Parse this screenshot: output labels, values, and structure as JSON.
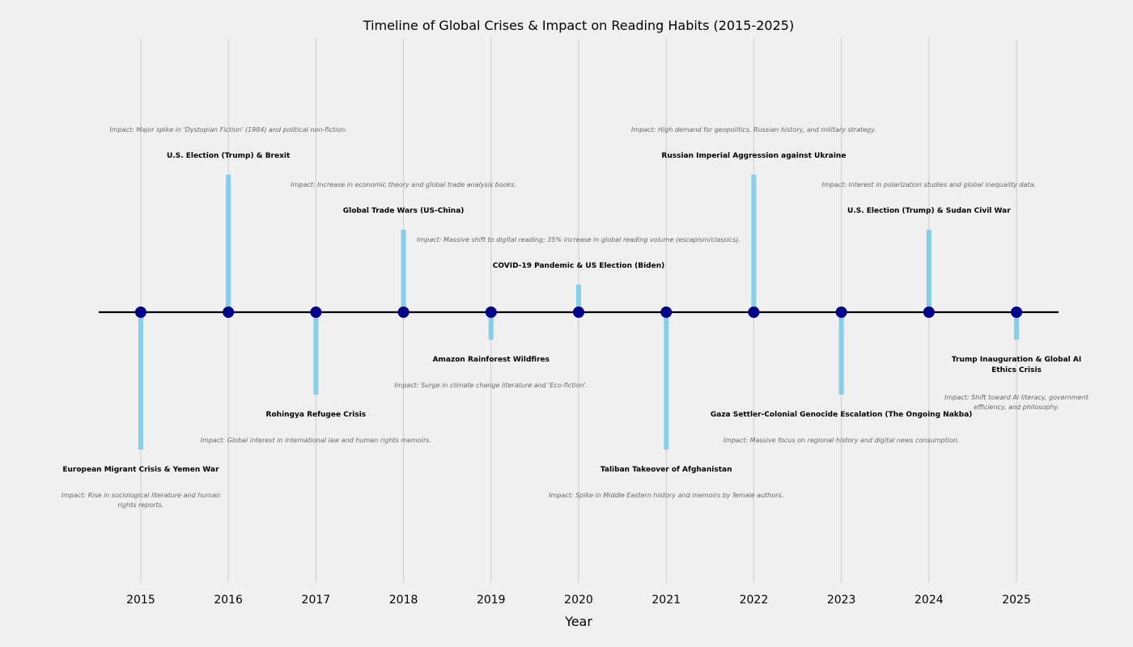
{
  "chart_data": {
    "type": "timeline",
    "title": "Timeline of Global Crises & Impact on Reading Habits (2015-2025)",
    "xlabel": "Year",
    "ylabel": "",
    "xlim": [
      2014.52,
      2025.48
    ],
    "ylim": [
      -10,
      10
    ],
    "grid": "vertical",
    "x_ticks": [
      "2015",
      "2016",
      "2017",
      "2018",
      "2019",
      "2020",
      "2021",
      "2022",
      "2023",
      "2024",
      "2025"
    ],
    "colors": {
      "stem": "#87ceeb",
      "marker": "#00008b",
      "baseline": "#000000",
      "grid": "#cccccc",
      "impact_text": "#666666"
    },
    "events": [
      {
        "year": 2015,
        "level": -5,
        "event": "European Migrant Crisis & Yemen War",
        "impact": "Impact: Rise in sociological literature and human rights reports."
      },
      {
        "year": 2016,
        "level": 5,
        "event": "U.S. Election (Trump) & Brexit",
        "impact": "Impact: Major spike in 'Dystopian Fiction' (1984) and political non-fiction."
      },
      {
        "year": 2017,
        "level": -3,
        "event": "Rohingya Refugee Crisis",
        "impact": "Impact: Global interest in international law and human rights memoirs."
      },
      {
        "year": 2018,
        "level": 3,
        "event": "Global Trade Wars (US-China)",
        "impact": "Impact: Increase in economic theory and global trade analysis books."
      },
      {
        "year": 2019,
        "level": -1,
        "event": "Amazon Rainforest Wildfires",
        "impact": "Impact: Surge in climate change literature and 'Eco-fiction'."
      },
      {
        "year": 2020,
        "level": 1,
        "event": "COVID-19 Pandemic & US Election (Biden)",
        "impact": "Impact: Massive shift to digital reading; 35% increase in global reading volume (escapism/classics)."
      },
      {
        "year": 2021,
        "level": -5,
        "event": "Taliban Takeover of Afghanistan",
        "impact": "Impact: Spike in Middle Eastern history and memoirs by female authors."
      },
      {
        "year": 2022,
        "level": 5,
        "event": "Russian Imperial Aggression against Ukraine",
        "impact": "Impact: High demand for geopolitics, Russian history, and military strategy."
      },
      {
        "year": 2023,
        "level": -3,
        "event": "Gaza Settler-Colonial Genocide Escalation (The Ongoing Nakba)",
        "impact": "Impact: Massive focus on regional history and digital news consumption."
      },
      {
        "year": 2024,
        "level": 3,
        "event": "U.S. Election (Trump) & Sudan Civil War",
        "impact": "Impact: Interest in polarization studies and global inequality data."
      },
      {
        "year": 2025,
        "level": -1,
        "event": "Trump Inauguration & Global AI Ethics Crisis",
        "impact": "Impact: Shift toward AI literacy, government efficiency, and philosophy."
      }
    ]
  }
}
